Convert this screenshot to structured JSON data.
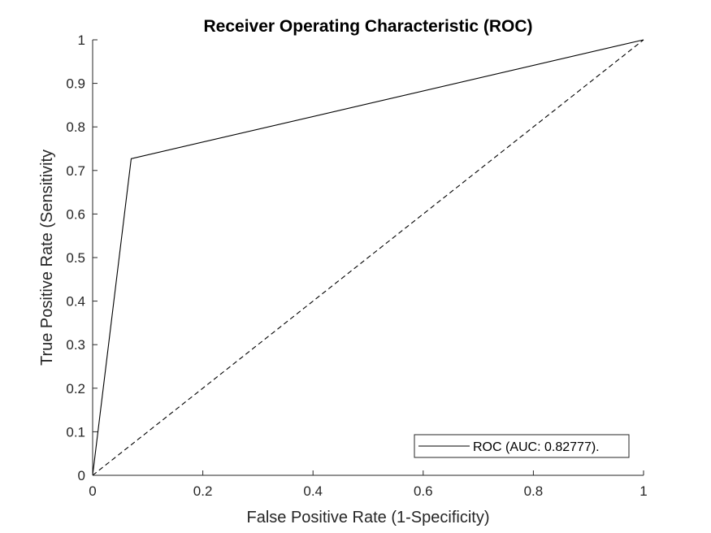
{
  "chart_data": {
    "type": "line",
    "title": "Receiver Operating Characteristic (ROC)",
    "xlabel": "False Positive Rate (1-Specificity)",
    "ylabel": "True Positive Rate (Sensitivity",
    "xlim": [
      0,
      1
    ],
    "ylim": [
      0,
      1
    ],
    "xticks": [
      "0",
      "0.2",
      "0.4",
      "0.6",
      "0.8",
      "1"
    ],
    "yticks": [
      "0",
      "0.1",
      "0.2",
      "0.3",
      "0.4",
      "0.5",
      "0.6",
      "0.7",
      "0.8",
      "0.9",
      "1"
    ],
    "grid": false,
    "legend_position": "bottom-right",
    "series": [
      {
        "name": "ROC (AUC: 0.82777).",
        "style": "solid",
        "color": "#000000",
        "x": [
          0,
          0.07,
          1
        ],
        "y": [
          0,
          0.727,
          1
        ]
      },
      {
        "style": "dashed",
        "color": "#000000",
        "x": [
          0,
          1
        ],
        "y": [
          0,
          1
        ]
      }
    ]
  }
}
